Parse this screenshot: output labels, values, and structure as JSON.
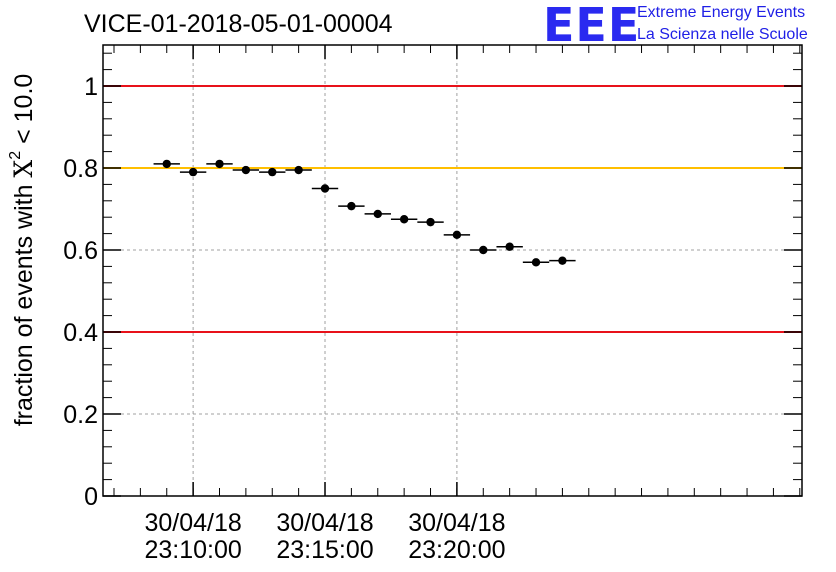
{
  "title": "VICE-01-2018-05-01-00004",
  "logo": {
    "mark": "EEE",
    "line1": "Extreme Energy Events",
    "line2": "La Scienza nelle Scuole",
    "color": "#2a2af0"
  },
  "chart_data": {
    "type": "scatter",
    "title": "VICE-01-2018-05-01-00004",
    "xlabel": "",
    "ylabel_main": "fraction of events with ",
    "ylabel_chi": "Χ",
    "ylabel_sup": "2",
    "ylabel_tail": " < 10.0",
    "x_unit": "seconds relative to 30/04/18 23:10:00",
    "xlim": [
      -205,
      1385
    ],
    "ylim": [
      0,
      1.1
    ],
    "grid": true,
    "y_ticks": [
      0,
      0.2,
      0.4,
      0.6,
      0.8,
      1
    ],
    "y_tick_labels": [
      "0",
      "0.2",
      "0.4",
      "0.6",
      "0.8",
      "1"
    ],
    "x_ticks": [
      {
        "x": 0,
        "line1": "30/04/18",
        "line2": "23:10:00"
      },
      {
        "x": 300,
        "line1": "30/04/18",
        "line2": "23:15:00"
      },
      {
        "x": 600,
        "line1": "30/04/18",
        "line2": "23:20:00"
      }
    ],
    "x_minor_step": 60,
    "bin_width": 60,
    "x": [
      -60,
      0,
      60,
      120,
      180,
      240,
      300,
      360,
      420,
      480,
      540,
      600,
      660,
      720,
      780,
      840
    ],
    "values": [
      0.81,
      0.79,
      0.81,
      0.795,
      0.79,
      0.795,
      0.75,
      0.707,
      0.688,
      0.675,
      0.668,
      0.637,
      0.6,
      0.608,
      0.57,
      0.574
    ],
    "reference_lines": [
      {
        "y": 1.0,
        "color": "#e8111a"
      },
      {
        "y": 0.8,
        "color": "#ffbf00"
      },
      {
        "y": 0.4,
        "color": "#e8111a"
      }
    ],
    "marker_color": "#000000"
  }
}
